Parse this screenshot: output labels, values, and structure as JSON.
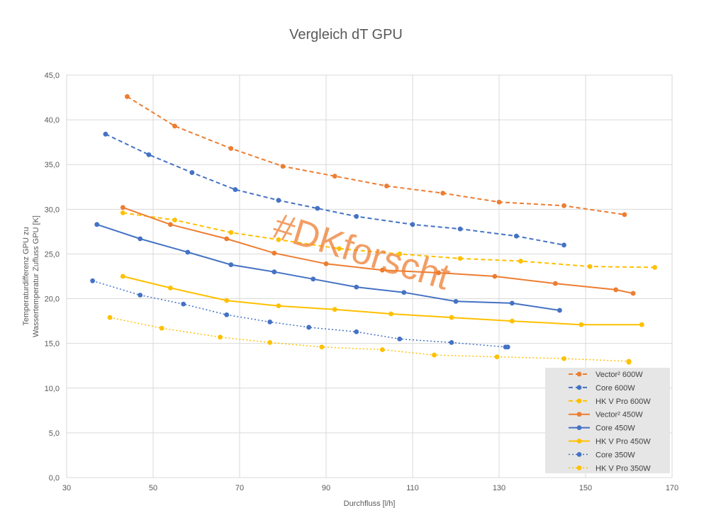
{
  "chart_data": {
    "type": "line",
    "title": "Vergleich dT GPU",
    "xlabel": "Durchfluss [l/h]",
    "ylabel": [
      "Temperaturdifferenz GPU zu",
      "Wassertemperatur Zufluss GPU  [K]"
    ],
    "xlim": [
      30,
      170
    ],
    "ylim": [
      0,
      45
    ],
    "x_ticks": [
      30,
      50,
      70,
      90,
      110,
      130,
      150,
      170
    ],
    "y_ticks": [
      0,
      5,
      10,
      15,
      20,
      25,
      30,
      35,
      40,
      45
    ],
    "x_tick_labels": [
      "30",
      "50",
      "70",
      "90",
      "110",
      "130",
      "150",
      "170"
    ],
    "y_tick_labels": [
      "0,0",
      "5,0",
      "10,0",
      "15,0",
      "20,0",
      "25,0",
      "30,0",
      "35,0",
      "40,0",
      "45,0"
    ],
    "grid": "both",
    "legend_position": "bottom-right",
    "watermark": "#DKforscht",
    "series": [
      {
        "name": "Vector² 600W",
        "color": "#ED7D31",
        "dash": "dashed",
        "x": [
          44,
          55,
          68,
          80,
          92,
          104,
          117,
          130,
          145,
          159
        ],
        "y": [
          42.6,
          39.3,
          36.8,
          34.8,
          33.7,
          32.6,
          31.8,
          30.8,
          30.4,
          29.4
        ]
      },
      {
        "name": "Core 600W",
        "color": "#4472C4",
        "dash": "dashed",
        "x": [
          39,
          49,
          59,
          69,
          79,
          88,
          97,
          110,
          121,
          134,
          145
        ],
        "y": [
          38.4,
          36.1,
          34.1,
          32.2,
          31.0,
          30.1,
          29.2,
          28.3,
          27.8,
          27.0,
          26.0
        ]
      },
      {
        "name": "HK V Pro 600W",
        "color": "#FFC000",
        "dash": "dashed",
        "x": [
          43,
          55,
          68,
          79,
          93,
          107,
          121,
          135,
          151,
          166
        ],
        "y": [
          29.6,
          28.8,
          27.4,
          26.6,
          25.6,
          25.0,
          24.5,
          24.2,
          23.6,
          23.5
        ]
      },
      {
        "name": "Vector² 450W",
        "color": "#ED7D31",
        "dash": "solid",
        "x": [
          43,
          54,
          67,
          78,
          90,
          103,
          116,
          129,
          143,
          157,
          161
        ],
        "y": [
          30.2,
          28.3,
          26.7,
          25.1,
          23.9,
          23.2,
          22.9,
          22.5,
          21.7,
          21.0,
          20.6
        ]
      },
      {
        "name": "Core 450W",
        "color": "#4472C4",
        "dash": "solid",
        "x": [
          37,
          47,
          58,
          68,
          78,
          87,
          97,
          108,
          120,
          133,
          144
        ],
        "y": [
          28.3,
          26.7,
          25.2,
          23.8,
          23.0,
          22.2,
          21.3,
          20.7,
          19.7,
          19.5,
          18.7
        ]
      },
      {
        "name": "HK V Pro 450W",
        "color": "#FFC000",
        "dash": "solid",
        "x": [
          43,
          54,
          67,
          79,
          92,
          105,
          119,
          133,
          149,
          163
        ],
        "y": [
          22.5,
          21.2,
          19.8,
          19.2,
          18.8,
          18.3,
          17.9,
          17.5,
          17.1,
          17.1
        ]
      },
      {
        "name": "Core 350W",
        "color": "#4472C4",
        "dash": "dotted",
        "x": [
          36,
          47,
          57,
          67,
          77,
          86,
          97,
          107,
          119,
          131.5,
          132
        ],
        "y": [
          22.0,
          20.4,
          19.4,
          18.2,
          17.4,
          16.8,
          16.3,
          15.5,
          15.1,
          14.6,
          14.6
        ]
      },
      {
        "name": "HK V Pro 350W",
        "color": "#FFC000",
        "dash": "dotted",
        "x": [
          40,
          52,
          65.5,
          77,
          89,
          103,
          115,
          129.5,
          145,
          160,
          160
        ],
        "y": [
          17.9,
          16.7,
          15.7,
          15.1,
          14.6,
          14.3,
          13.7,
          13.5,
          13.3,
          13.0,
          12.9
        ]
      }
    ]
  }
}
